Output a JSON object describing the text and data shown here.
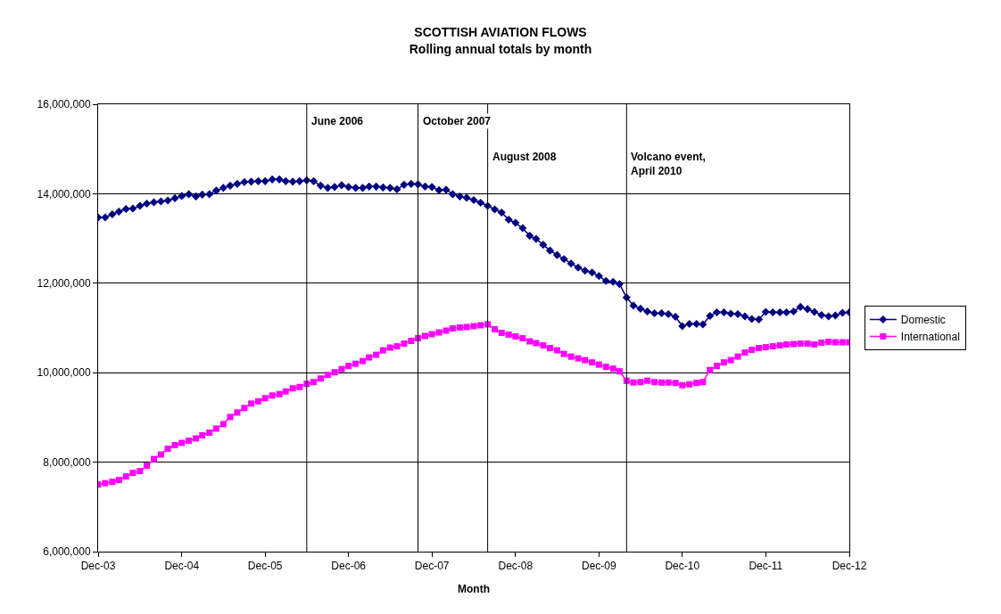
{
  "chart_data": {
    "type": "line",
    "title": "SCOTTISH AVIATION FLOWS",
    "subtitle": "Rolling annual totals by month",
    "xlabel": "Month",
    "x": [
      "2003-12",
      "2004-01",
      "2004-02",
      "2004-03",
      "2004-04",
      "2004-05",
      "2004-06",
      "2004-07",
      "2004-08",
      "2004-09",
      "2004-10",
      "2004-11",
      "2004-12",
      "2005-01",
      "2005-02",
      "2005-03",
      "2005-04",
      "2005-05",
      "2005-06",
      "2005-07",
      "2005-08",
      "2005-09",
      "2005-10",
      "2005-11",
      "2005-12",
      "2006-01",
      "2006-02",
      "2006-03",
      "2006-04",
      "2006-05",
      "2006-06",
      "2006-07",
      "2006-08",
      "2006-09",
      "2006-10",
      "2006-11",
      "2006-12",
      "2007-01",
      "2007-02",
      "2007-03",
      "2007-04",
      "2007-05",
      "2007-06",
      "2007-07",
      "2007-08",
      "2007-09",
      "2007-10",
      "2007-11",
      "2007-12",
      "2008-01",
      "2008-02",
      "2008-03",
      "2008-04",
      "2008-05",
      "2008-06",
      "2008-07",
      "2008-08",
      "2008-09",
      "2008-10",
      "2008-11",
      "2008-12",
      "2009-01",
      "2009-02",
      "2009-03",
      "2009-04",
      "2009-05",
      "2009-06",
      "2009-07",
      "2009-08",
      "2009-09",
      "2009-10",
      "2009-11",
      "2009-12",
      "2010-01",
      "2010-02",
      "2010-03",
      "2010-04",
      "2010-05",
      "2010-06",
      "2010-07",
      "2010-08",
      "2010-09",
      "2010-10",
      "2010-11",
      "2010-12",
      "2011-01",
      "2011-02",
      "2011-03",
      "2011-04",
      "2011-05",
      "2011-06",
      "2011-07",
      "2011-08",
      "2011-09",
      "2011-10",
      "2011-11",
      "2011-12",
      "2012-01",
      "2012-02",
      "2012-03",
      "2012-04",
      "2012-05",
      "2012-06",
      "2012-07",
      "2012-08",
      "2012-09",
      "2012-10",
      "2012-11",
      "2012-12"
    ],
    "series": [
      {
        "name": "Domestic",
        "color": "#000080",
        "marker": "diamond",
        "values": [
          13470000,
          13470000,
          13540000,
          13600000,
          13660000,
          13670000,
          13730000,
          13780000,
          13810000,
          13830000,
          13850000,
          13900000,
          13950000,
          13990000,
          13940000,
          13980000,
          13990000,
          14070000,
          14130000,
          14180000,
          14220000,
          14260000,
          14270000,
          14280000,
          14280000,
          14320000,
          14320000,
          14280000,
          14270000,
          14280000,
          14300000,
          14280000,
          14180000,
          14130000,
          14150000,
          14190000,
          14150000,
          14130000,
          14130000,
          14160000,
          14160000,
          14140000,
          14130000,
          14100000,
          14200000,
          14220000,
          14210000,
          14160000,
          14150000,
          14080000,
          14090000,
          13990000,
          13940000,
          13910000,
          13860000,
          13800000,
          13730000,
          13650000,
          13580000,
          13420000,
          13350000,
          13230000,
          13060000,
          12990000,
          12860000,
          12730000,
          12630000,
          12540000,
          12440000,
          12350000,
          12280000,
          12240000,
          12160000,
          12050000,
          12030000,
          11980000,
          11680000,
          11500000,
          11430000,
          11370000,
          11330000,
          11330000,
          11310000,
          11250000,
          11040000,
          11090000,
          11090000,
          11080000,
          11270000,
          11350000,
          11350000,
          11320000,
          11310000,
          11260000,
          11200000,
          11190000,
          11360000,
          11350000,
          11350000,
          11350000,
          11370000,
          11470000,
          11420000,
          11360000,
          11290000,
          11260000,
          11280000,
          11340000,
          11350000
        ]
      },
      {
        "name": "International",
        "color": "#ff00ff",
        "marker": "square",
        "values": [
          7500000,
          7530000,
          7560000,
          7600000,
          7680000,
          7760000,
          7800000,
          7920000,
          8070000,
          8170000,
          8300000,
          8380000,
          8430000,
          8480000,
          8530000,
          8600000,
          8660000,
          8750000,
          8850000,
          9010000,
          9110000,
          9210000,
          9310000,
          9360000,
          9430000,
          9490000,
          9520000,
          9580000,
          9650000,
          9680000,
          9750000,
          9790000,
          9870000,
          9950000,
          10010000,
          10080000,
          10150000,
          10200000,
          10260000,
          10340000,
          10400000,
          10500000,
          10560000,
          10590000,
          10650000,
          10710000,
          10770000,
          10820000,
          10860000,
          10900000,
          10940000,
          10990000,
          11010000,
          11020000,
          11040000,
          11060000,
          11080000,
          10970000,
          10890000,
          10850000,
          10810000,
          10770000,
          10700000,
          10660000,
          10610000,
          10550000,
          10500000,
          10420000,
          10360000,
          10320000,
          10280000,
          10230000,
          10180000,
          10130000,
          10090000,
          10030000,
          9820000,
          9780000,
          9790000,
          9820000,
          9790000,
          9780000,
          9780000,
          9770000,
          9720000,
          9740000,
          9770000,
          9790000,
          10060000,
          10150000,
          10230000,
          10280000,
          10360000,
          10450000,
          10510000,
          10550000,
          10570000,
          10590000,
          10610000,
          10630000,
          10640000,
          10650000,
          10650000,
          10630000,
          10670000,
          10690000,
          10680000,
          10680000,
          10680000
        ]
      }
    ],
    "xlim": [
      "2003-12",
      "2012-12"
    ],
    "xticks": [
      {
        "value": "2003-12",
        "label": "Dec-03"
      },
      {
        "value": "2004-12",
        "label": "Dec-04"
      },
      {
        "value": "2005-12",
        "label": "Dec-05"
      },
      {
        "value": "2006-12",
        "label": "Dec-06"
      },
      {
        "value": "2007-12",
        "label": "Dec-07"
      },
      {
        "value": "2008-12",
        "label": "Dec-08"
      },
      {
        "value": "2009-12",
        "label": "Dec-09"
      },
      {
        "value": "2010-12",
        "label": "Dec-10"
      },
      {
        "value": "2011-12",
        "label": "Dec-11"
      },
      {
        "value": "2012-12",
        "label": "Dec-12"
      }
    ],
    "ylim": [
      6000000,
      16000000
    ],
    "yticks": [
      {
        "value": 6000000,
        "label": "6,000,000"
      },
      {
        "value": 8000000,
        "label": "8,000,000"
      },
      {
        "value": 10000000,
        "label": "10,000,000"
      },
      {
        "value": 12000000,
        "label": "12,000,000"
      },
      {
        "value": 14000000,
        "label": "14,000,000"
      },
      {
        "value": 16000000,
        "label": "16,000,000"
      }
    ],
    "ref_lines": [
      {
        "axis": "x",
        "value": "2006-06",
        "label": "June 2006",
        "color": "#000000"
      },
      {
        "axis": "x",
        "value": "2007-10",
        "label": "October 2007",
        "color": "#000000"
      },
      {
        "axis": "x",
        "value": "2008-08",
        "label": "August 2008",
        "color": "#000000"
      },
      {
        "axis": "x",
        "value": "2010-04",
        "label": "Volcano event,\nApril 2010",
        "color": "#000000"
      }
    ],
    "grid": "y",
    "legend": "right",
    "line_style": "solid"
  }
}
